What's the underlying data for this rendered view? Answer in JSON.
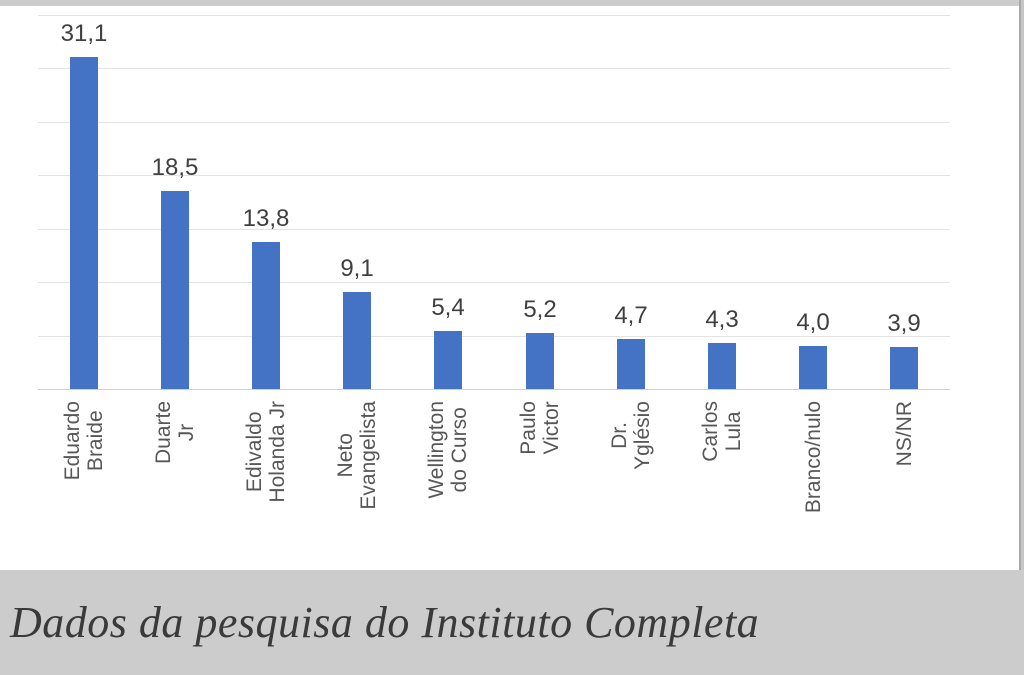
{
  "chart_data": {
    "type": "bar",
    "title": "",
    "xlabel": "",
    "ylabel": "",
    "categories": [
      "Eduardo Braide",
      "Duarte Jr",
      "Edivaldo Holanda Jr",
      "Neto Evangelista",
      "Wellington do Curso",
      "Paulo Victor",
      "Dr. Yglésio",
      "Carlos Lula",
      "Branco/nulo",
      "NS/NR"
    ],
    "category_lines": [
      [
        "Eduardo",
        "Braide"
      ],
      [
        "Duarte",
        "Jr"
      ],
      [
        "Edivaldo",
        "Holanda Jr"
      ],
      [
        "Neto",
        "Evangelista"
      ],
      [
        "Wellington",
        "do Curso"
      ],
      [
        "Paulo",
        "Victor"
      ],
      [
        "Dr.",
        "Yglésio"
      ],
      [
        "Carlos",
        "Lula"
      ],
      [
        "Branco/nulo"
      ],
      [
        "NS/NR"
      ]
    ],
    "values": [
      31.1,
      18.5,
      13.8,
      9.1,
      5.4,
      5.2,
      4.7,
      4.3,
      4.0,
      3.9
    ],
    "value_labels": [
      "31,1",
      "18,5",
      "13,8",
      "9,1",
      "5,4",
      "5,2",
      "4,7",
      "4,3",
      "4,0",
      "3,9"
    ],
    "ylim": [
      0,
      35
    ],
    "grid_step": 5,
    "grid": "on",
    "legend": "none",
    "bar_color": "#4472c4",
    "grid_color": "#e3e3e3",
    "axis_color": "#d0d0d0",
    "value_label_color": "#3f3f3f",
    "category_label_color": "#575757"
  },
  "caption": {
    "text": "Dados da pesquisa do Instituto Completa",
    "band_color": "#cccccc",
    "text_color": "#3a3a3a"
  },
  "frame": {
    "top_strip_color": "#cccccc",
    "right_strip_color": "#c6c6c6",
    "right_line_color": "#a9a9a9"
  }
}
